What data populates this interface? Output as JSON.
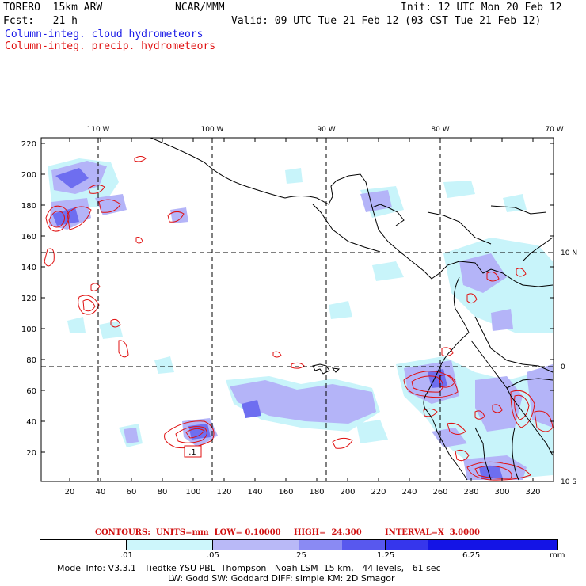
{
  "header": {
    "model": "TORERO  15km ARW",
    "org": "NCAR/MMM",
    "init": "Init: 12 UTC Mon 20 Feb 12",
    "fcst": "Fcst:   21 h",
    "valid": "Valid: 09 UTC Tue 21 Feb 12 (03 CST Tue 21 Feb 12)",
    "field1": "Column-integ. cloud hydrometeors",
    "field2": "Column-integ. precip. hydrometeors"
  },
  "map": {
    "lon_labels": [
      "110 W",
      "100 W",
      "90 W",
      "80 W",
      "70 W"
    ],
    "lat_labels": [
      "10 N",
      "0",
      "10 S"
    ],
    "y_ticks": [
      "220",
      "200",
      "180",
      "160",
      "140",
      "120",
      "100",
      "80",
      "60",
      "40",
      "20"
    ],
    "x_ticks": [
      "20",
      "40",
      "60",
      "80",
      "100",
      "120",
      "140",
      "160",
      "180",
      "200",
      "220",
      "240",
      "260",
      "280",
      "300",
      "320"
    ],
    "low_marker": ".1",
    "colors": {
      "cloud_light": "#c8f4fa",
      "cloud_mid": "#b4b4f8",
      "cloud_dark": "#6e6ef0",
      "precip": "#e01010",
      "coast": "#000000"
    }
  },
  "contours_line": {
    "label": "CONTOURS:  UNITS=mm  LOW= 0.10000",
    "high": "HIGH=  24.300",
    "interval": "INTERVAL=X  3.0000"
  },
  "colorbar": {
    "labels": [
      ".01",
      ".05",
      ".25",
      "1.25",
      "6.25"
    ],
    "units": "mm",
    "colors": [
      "#ffffff",
      "#cdf6fb",
      "#b9b9f7",
      "#8a8af3",
      "#5858ee",
      "#3636ec",
      "#1414e6"
    ]
  },
  "model_info": {
    "line1": "Model Info: V3.3.1   Tiedtke YSU PBL  Thompson   Noah LSM  15 km,   44 levels,   61 sec",
    "line2": "LW: Godd SW: Goddard DIFF: simple KM: 2D Smagor"
  }
}
